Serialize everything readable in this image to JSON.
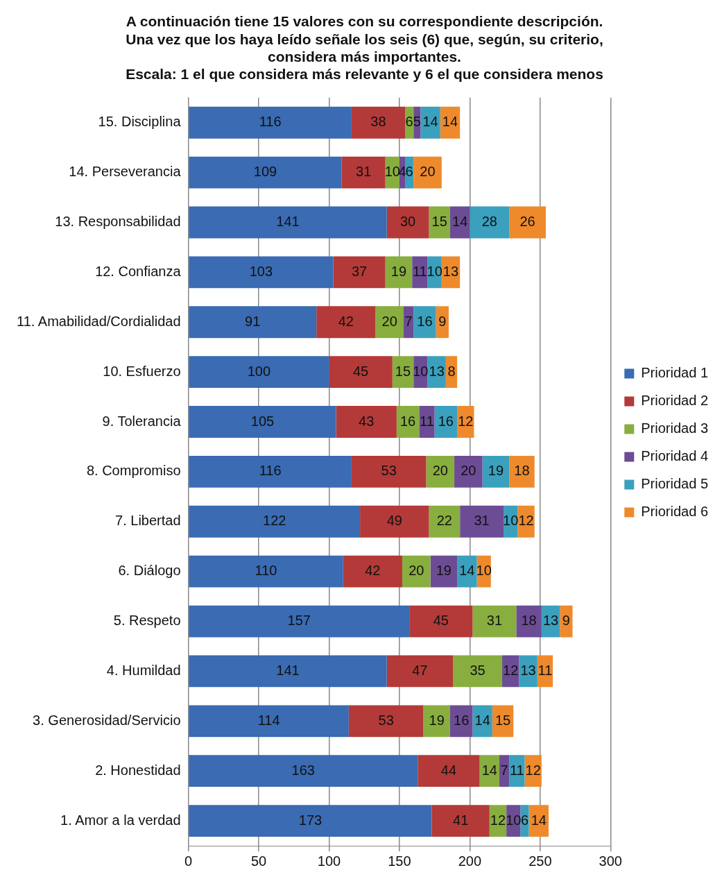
{
  "chart_data": {
    "type": "bar",
    "orientation": "horizontal",
    "stacked": true,
    "title": "A continuación tiene 15 valores con su correspondiente descripción.\nUna vez que los haya leído señale los seis (6) que, según, su criterio,\nconsidera más importantes.\nEscala: 1 el que considera más relevante y 6 el que considera menos",
    "categories": [
      "15. Disciplina",
      "14. Perseverancia",
      "13. Responsabilidad",
      "12. Confianza",
      "11. Amabilidad/Cordialidad",
      "10. Esfuerzo",
      "9. Tolerancia",
      "8. Compromiso",
      "7. Libertad",
      "6. Diálogo",
      "5. Respeto",
      "4. Humildad",
      "3. Generosidad/Servicio",
      "2. Honestidad",
      "1. Amor a la verdad"
    ],
    "series": [
      {
        "name": "Prioridad 1",
        "color": "#3a6bb3",
        "values": [
          116,
          109,
          141,
          103,
          91,
          100,
          105,
          116,
          122,
          110,
          157,
          141,
          114,
          163,
          173
        ]
      },
      {
        "name": "Prioridad 2",
        "color": "#b33a38",
        "values": [
          38,
          31,
          30,
          37,
          42,
          45,
          43,
          53,
          49,
          42,
          45,
          47,
          53,
          44,
          41
        ]
      },
      {
        "name": "Prioridad 3",
        "color": "#88ae3f",
        "values": [
          6,
          10,
          15,
          19,
          20,
          15,
          16,
          20,
          22,
          20,
          31,
          35,
          19,
          14,
          12
        ]
      },
      {
        "name": "Prioridad 4",
        "color": "#6d4c96",
        "values": [
          5,
          4,
          14,
          11,
          7,
          10,
          11,
          20,
          31,
          19,
          18,
          12,
          16,
          7,
          10
        ]
      },
      {
        "name": "Prioridad 5",
        "color": "#3aa0bd",
        "values": [
          14,
          6,
          28,
          10,
          16,
          13,
          16,
          19,
          10,
          14,
          13,
          13,
          14,
          11,
          6
        ]
      },
      {
        "name": "Prioridad 6",
        "color": "#ee8a2c",
        "values": [
          14,
          20,
          26,
          13,
          9,
          8,
          12,
          18,
          12,
          10,
          9,
          11,
          15,
          12,
          14
        ]
      }
    ],
    "xlim": [
      0,
      300
    ],
    "xticks": [
      0,
      50,
      100,
      150,
      200,
      250,
      300
    ],
    "grid": "x",
    "legend": "right",
    "data_labels": true
  }
}
